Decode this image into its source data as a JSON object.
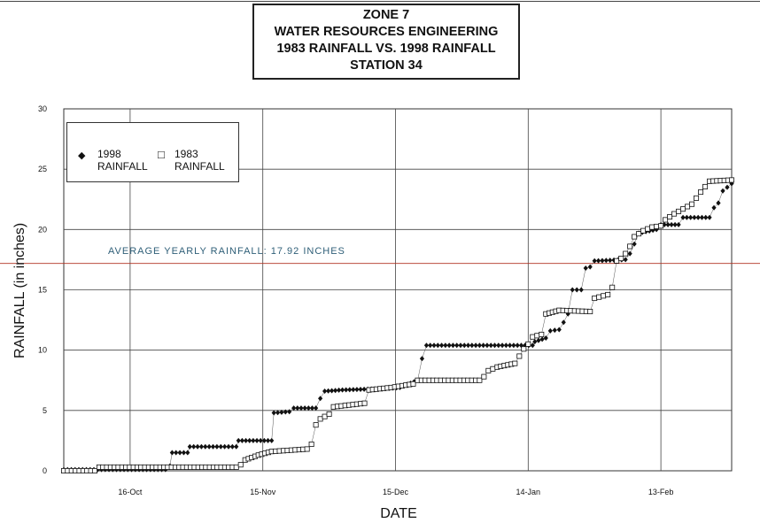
{
  "title": {
    "line1": "ZONE 7",
    "line2": "WATER RESOURCES ENGINEERING",
    "line3": "1983 RAINFALL VS. 1998 RAINFALL",
    "line4": "STATION 34"
  },
  "legend": {
    "series1_marker": "◆",
    "series1_line1": "1998",
    "series1_line2": "RAINFALL",
    "series2_marker": "□",
    "series2_line1": "1983",
    "series2_line2": "RAINFALL"
  },
  "reference_line": {
    "label": "AVERAGE YEARLY RAINFALL: 17.92 INCHES",
    "value": 17.92,
    "color": "#b03020"
  },
  "chart_data": {
    "type": "line",
    "xlabel": "DATE",
    "ylabel": "RAINFALL (in inches)",
    "xlim": [
      0,
      142
    ],
    "ylim": [
      0,
      30
    ],
    "yticks": [
      0,
      5,
      10,
      15,
      20,
      25,
      30
    ],
    "xticks": [
      {
        "pos": 15,
        "label": "16-Oct"
      },
      {
        "pos": 45,
        "label": "15-Nov"
      },
      {
        "pos": 75,
        "label": "15-Dec"
      },
      {
        "pos": 105,
        "label": "14-Jan"
      },
      {
        "pos": 135,
        "label": "13-Feb"
      }
    ],
    "grid": true,
    "legend_position": "top-left",
    "series": [
      {
        "name": "1998 RAINFALL",
        "marker": "diamond",
        "color": "#111111",
        "points": [
          [
            0,
            0.1
          ],
          [
            23,
            0.1
          ],
          [
            24,
            0.4
          ],
          [
            24.5,
            1.5
          ],
          [
            28,
            1.5
          ],
          [
            28.5,
            2.0
          ],
          [
            39,
            2.0
          ],
          [
            39.5,
            2.5
          ],
          [
            47,
            2.5
          ],
          [
            47.5,
            4.8
          ],
          [
            51,
            4.9
          ],
          [
            52,
            5.2
          ],
          [
            57,
            5.2
          ],
          [
            58,
            6.0
          ],
          [
            59,
            6.6
          ],
          [
            63,
            6.7
          ],
          [
            72,
            6.8
          ],
          [
            76,
            6.9
          ],
          [
            80,
            7.5
          ],
          [
            81,
            9.3
          ],
          [
            82,
            10.4
          ],
          [
            106,
            10.4
          ],
          [
            106.5,
            10.7
          ],
          [
            109,
            11.0
          ],
          [
            110,
            11.6
          ],
          [
            112,
            11.7
          ],
          [
            113,
            12.3
          ],
          [
            114,
            13.0
          ],
          [
            115,
            15.0
          ],
          [
            117,
            15.0
          ],
          [
            118,
            16.8
          ],
          [
            119,
            16.9
          ],
          [
            120,
            17.4
          ],
          [
            127,
            17.5
          ],
          [
            128,
            18.0
          ],
          [
            129,
            18.8
          ],
          [
            130,
            19.7
          ],
          [
            134,
            20.0
          ],
          [
            135,
            20.4
          ],
          [
            139,
            20.4
          ],
          [
            140,
            21.0
          ],
          [
            146,
            21.0
          ],
          [
            147,
            21.8
          ],
          [
            148,
            22.2
          ],
          [
            149,
            23.2
          ],
          [
            150,
            23.5
          ],
          [
            151,
            23.8
          ]
        ]
      },
      {
        "name": "1983 RAINFALL",
        "marker": "square",
        "color": "#111111",
        "points": [
          [
            0,
            0.0
          ],
          [
            7,
            0.0
          ],
          [
            8,
            0.3
          ],
          [
            39,
            0.3
          ],
          [
            40,
            0.5
          ],
          [
            41,
            0.9
          ],
          [
            44,
            1.3
          ],
          [
            47,
            1.6
          ],
          [
            55,
            1.8
          ],
          [
            56,
            2.2
          ],
          [
            57,
            3.8
          ],
          [
            58,
            4.3
          ],
          [
            60,
            4.7
          ],
          [
            61,
            5.3
          ],
          [
            68,
            5.6
          ],
          [
            69,
            6.7
          ],
          [
            74,
            6.9
          ],
          [
            79,
            7.2
          ],
          [
            80,
            7.5
          ],
          [
            94,
            7.5
          ],
          [
            95,
            7.8
          ],
          [
            96,
            8.3
          ],
          [
            98,
            8.6
          ],
          [
            102,
            8.9
          ],
          [
            103,
            9.5
          ],
          [
            104,
            10.1
          ],
          [
            105,
            10.5
          ],
          [
            106,
            11.1
          ],
          [
            108,
            11.3
          ],
          [
            109,
            13.0
          ],
          [
            112,
            13.3
          ],
          [
            119,
            13.2
          ],
          [
            120,
            14.3
          ],
          [
            122,
            14.5
          ],
          [
            123,
            14.6
          ],
          [
            124,
            15.2
          ],
          [
            125,
            17.4
          ],
          [
            126,
            17.6
          ],
          [
            127,
            18.0
          ],
          [
            128,
            18.6
          ],
          [
            129,
            19.4
          ],
          [
            131,
            19.9
          ],
          [
            133,
            20.2
          ],
          [
            135,
            20.3
          ],
          [
            136,
            20.8
          ],
          [
            138,
            21.3
          ],
          [
            140,
            21.7
          ],
          [
            142,
            22.1
          ],
          [
            144,
            23.1
          ],
          [
            146,
            24.0
          ],
          [
            151,
            24.1
          ]
        ]
      }
    ]
  }
}
